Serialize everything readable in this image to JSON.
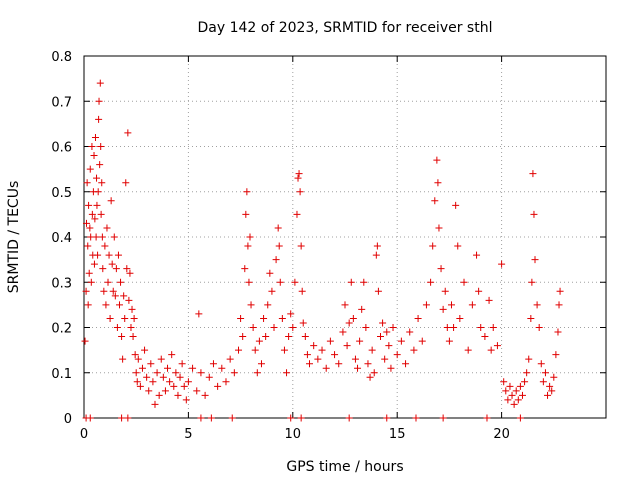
{
  "chart_data": {
    "type": "scatter",
    "title": "Day 142 of 2023, SRMTID for receiver sthl",
    "xlabel": "GPS time / hours",
    "ylabel": "SRMTID / TECUs",
    "xlim": [
      0,
      25
    ],
    "ylim": [
      0,
      0.8
    ],
    "x_ticks": [
      0,
      5,
      10,
      15,
      20
    ],
    "y_ticks": [
      0,
      0.1,
      0.2,
      0.3,
      0.4,
      0.5,
      0.6,
      0.7,
      0.8
    ],
    "x_tick_labels": [
      "0",
      "5",
      "10",
      "15",
      "20"
    ],
    "y_tick_labels": [
      "0",
      "0.1",
      "0.2",
      "0.3",
      "0.4",
      "0.5",
      "0.6",
      "0.7",
      "0.8"
    ],
    "grid": true,
    "marker": "+",
    "marker_color": "#e00000",
    "series": [
      {
        "name": "SRMTID",
        "points": [
          [
            0.05,
            0.17
          ],
          [
            0.1,
            0.28
          ],
          [
            0.12,
            0.43
          ],
          [
            0.15,
            0.52
          ],
          [
            0.18,
            0.38
          ],
          [
            0.2,
            0.25
          ],
          [
            0.22,
            0.47
          ],
          [
            0.25,
            0.32
          ],
          [
            0.28,
            0.42
          ],
          [
            0.3,
            0.55
          ],
          [
            0.32,
            0.4
          ],
          [
            0.35,
            0.3
          ],
          [
            0.38,
            0.6
          ],
          [
            0.4,
            0.45
          ],
          [
            0.42,
            0.36
          ],
          [
            0.45,
            0.5
          ],
          [
            0.48,
            0.58
          ],
          [
            0.5,
            0.34
          ],
          [
            0.52,
            0.44
          ],
          [
            0.55,
            0.62
          ],
          [
            0.58,
            0.4
          ],
          [
            0.6,
            0.53
          ],
          [
            0.62,
            0.47
          ],
          [
            0.65,
            0.36
          ],
          [
            0.68,
            0.5
          ],
          [
            0.7,
            0.66
          ],
          [
            0.72,
            0.7
          ],
          [
            0.75,
            0.56
          ],
          [
            0.78,
            0.74
          ],
          [
            0.8,
            0.6
          ],
          [
            0.82,
            0.45
          ],
          [
            0.85,
            0.52
          ],
          [
            0.88,
            0.4
          ],
          [
            0.9,
            0.33
          ],
          [
            0.95,
            0.28
          ],
          [
            1.0,
            0.38
          ],
          [
            1.05,
            0.25
          ],
          [
            1.1,
            0.42
          ],
          [
            1.15,
            0.3
          ],
          [
            1.2,
            0.36
          ],
          [
            1.25,
            0.22
          ],
          [
            1.3,
            0.48
          ],
          [
            1.35,
            0.34
          ],
          [
            1.4,
            0.28
          ],
          [
            1.45,
            0.4
          ],
          [
            1.5,
            0.27
          ],
          [
            1.55,
            0.33
          ],
          [
            1.6,
            0.2
          ],
          [
            1.65,
            0.36
          ],
          [
            1.7,
            0.25
          ],
          [
            1.75,
            0.3
          ],
          [
            1.8,
            0.18
          ],
          [
            1.85,
            0.13
          ],
          [
            1.9,
            0.27
          ],
          [
            1.95,
            0.22
          ],
          [
            2.0,
            0.52
          ],
          [
            2.05,
            0.33
          ],
          [
            2.1,
            0.63
          ],
          [
            2.15,
            0.26
          ],
          [
            2.2,
            0.32
          ],
          [
            2.25,
            0.2
          ],
          [
            2.3,
            0.24
          ],
          [
            2.35,
            0.18
          ],
          [
            2.4,
            0.22
          ],
          [
            2.45,
            0.14
          ],
          [
            2.5,
            0.1
          ],
          [
            2.55,
            0.08
          ],
          [
            2.6,
            0.13
          ],
          [
            2.7,
            0.07
          ],
          [
            2.8,
            0.11
          ],
          [
            2.9,
            0.15
          ],
          [
            3.0,
            0.09
          ],
          [
            3.1,
            0.06
          ],
          [
            3.2,
            0.12
          ],
          [
            3.3,
            0.08
          ],
          [
            3.4,
            0.03
          ],
          [
            3.5,
            0.1
          ],
          [
            3.6,
            0.05
          ],
          [
            3.7,
            0.13
          ],
          [
            3.8,
            0.09
          ],
          [
            3.9,
            0.06
          ],
          [
            4.0,
            0.11
          ],
          [
            4.1,
            0.08
          ],
          [
            4.2,
            0.14
          ],
          [
            4.3,
            0.07
          ],
          [
            4.4,
            0.1
          ],
          [
            4.5,
            0.05
          ],
          [
            4.6,
            0.09
          ],
          [
            4.7,
            0.12
          ],
          [
            4.8,
            0.07
          ],
          [
            4.9,
            0.04
          ],
          [
            5.0,
            0.08
          ],
          [
            5.2,
            0.11
          ],
          [
            5.4,
            0.06
          ],
          [
            5.5,
            0.23
          ],
          [
            5.6,
            0.1
          ],
          [
            5.8,
            0.05
          ],
          [
            6.0,
            0.09
          ],
          [
            6.2,
            0.12
          ],
          [
            6.4,
            0.07
          ],
          [
            6.6,
            0.11
          ],
          [
            6.8,
            0.08
          ],
          [
            7.0,
            0.13
          ],
          [
            7.2,
            0.1
          ],
          [
            7.4,
            0.15
          ],
          [
            7.5,
            0.22
          ],
          [
            7.6,
            0.18
          ],
          [
            7.7,
            0.33
          ],
          [
            7.75,
            0.45
          ],
          [
            7.8,
            0.5
          ],
          [
            7.85,
            0.38
          ],
          [
            7.9,
            0.3
          ],
          [
            7.95,
            0.4
          ],
          [
            8.0,
            0.25
          ],
          [
            8.1,
            0.2
          ],
          [
            8.2,
            0.15
          ],
          [
            8.3,
            0.1
          ],
          [
            8.4,
            0.17
          ],
          [
            8.5,
            0.12
          ],
          [
            8.6,
            0.22
          ],
          [
            8.7,
            0.18
          ],
          [
            8.8,
            0.25
          ],
          [
            8.9,
            0.32
          ],
          [
            9.0,
            0.28
          ],
          [
            9.1,
            0.2
          ],
          [
            9.2,
            0.35
          ],
          [
            9.3,
            0.42
          ],
          [
            9.35,
            0.38
          ],
          [
            9.4,
            0.3
          ],
          [
            9.5,
            0.22
          ],
          [
            9.6,
            0.15
          ],
          [
            9.7,
            0.1
          ],
          [
            9.8,
            0.18
          ],
          [
            9.9,
            0.23
          ],
          [
            10.0,
            0.2
          ],
          [
            10.1,
            0.3
          ],
          [
            10.2,
            0.45
          ],
          [
            10.25,
            0.53
          ],
          [
            10.3,
            0.54
          ],
          [
            10.35,
            0.5
          ],
          [
            10.4,
            0.38
          ],
          [
            10.45,
            0.28
          ],
          [
            10.5,
            0.21
          ],
          [
            10.6,
            0.18
          ],
          [
            10.7,
            0.14
          ],
          [
            10.8,
            0.12
          ],
          [
            11.0,
            0.16
          ],
          [
            11.2,
            0.13
          ],
          [
            11.4,
            0.15
          ],
          [
            11.6,
            0.11
          ],
          [
            11.8,
            0.17
          ],
          [
            12.0,
            0.14
          ],
          [
            12.2,
            0.12
          ],
          [
            12.4,
            0.19
          ],
          [
            12.5,
            0.25
          ],
          [
            12.6,
            0.16
          ],
          [
            12.7,
            0.21
          ],
          [
            12.8,
            0.3
          ],
          [
            12.9,
            0.22
          ],
          [
            13.0,
            0.13
          ],
          [
            13.1,
            0.11
          ],
          [
            13.2,
            0.17
          ],
          [
            13.3,
            0.24
          ],
          [
            13.4,
            0.3
          ],
          [
            13.5,
            0.2
          ],
          [
            13.6,
            0.12
          ],
          [
            13.7,
            0.09
          ],
          [
            13.8,
            0.15
          ],
          [
            13.9,
            0.1
          ],
          [
            14.0,
            0.36
          ],
          [
            14.05,
            0.38
          ],
          [
            14.1,
            0.28
          ],
          [
            14.2,
            0.18
          ],
          [
            14.3,
            0.21
          ],
          [
            14.4,
            0.13
          ],
          [
            14.5,
            0.19
          ],
          [
            14.6,
            0.16
          ],
          [
            14.7,
            0.11
          ],
          [
            14.8,
            0.2
          ],
          [
            15.0,
            0.14
          ],
          [
            15.2,
            0.17
          ],
          [
            15.4,
            0.12
          ],
          [
            15.6,
            0.19
          ],
          [
            15.8,
            0.15
          ],
          [
            16.0,
            0.22
          ],
          [
            16.2,
            0.17
          ],
          [
            16.4,
            0.25
          ],
          [
            16.6,
            0.3
          ],
          [
            16.7,
            0.38
          ],
          [
            16.8,
            0.48
          ],
          [
            16.9,
            0.57
          ],
          [
            16.95,
            0.52
          ],
          [
            17.0,
            0.42
          ],
          [
            17.1,
            0.33
          ],
          [
            17.2,
            0.24
          ],
          [
            17.3,
            0.28
          ],
          [
            17.4,
            0.2
          ],
          [
            17.5,
            0.17
          ],
          [
            17.6,
            0.25
          ],
          [
            17.7,
            0.2
          ],
          [
            17.8,
            0.47
          ],
          [
            17.9,
            0.38
          ],
          [
            18.0,
            0.22
          ],
          [
            18.2,
            0.3
          ],
          [
            18.4,
            0.15
          ],
          [
            18.6,
            0.25
          ],
          [
            18.8,
            0.36
          ],
          [
            18.9,
            0.28
          ],
          [
            19.0,
            0.2
          ],
          [
            19.2,
            0.18
          ],
          [
            19.4,
            0.26
          ],
          [
            19.5,
            0.15
          ],
          [
            19.6,
            0.2
          ],
          [
            19.8,
            0.16
          ],
          [
            20.0,
            0.34
          ],
          [
            20.1,
            0.08
          ],
          [
            20.2,
            0.06
          ],
          [
            20.3,
            0.04
          ],
          [
            20.4,
            0.07
          ],
          [
            20.5,
            0.05
          ],
          [
            20.6,
            0.03
          ],
          [
            20.7,
            0.06
          ],
          [
            20.8,
            0.04
          ],
          [
            20.9,
            0.07
          ],
          [
            21.0,
            0.05
          ],
          [
            21.1,
            0.08
          ],
          [
            21.2,
            0.1
          ],
          [
            21.3,
            0.13
          ],
          [
            21.4,
            0.22
          ],
          [
            21.45,
            0.3
          ],
          [
            21.5,
            0.54
          ],
          [
            21.55,
            0.45
          ],
          [
            21.6,
            0.35
          ],
          [
            21.7,
            0.25
          ],
          [
            21.8,
            0.2
          ],
          [
            21.9,
            0.12
          ],
          [
            22.0,
            0.08
          ],
          [
            22.1,
            0.1
          ],
          [
            22.2,
            0.05
          ],
          [
            22.3,
            0.07
          ],
          [
            22.4,
            0.06
          ],
          [
            22.5,
            0.09
          ],
          [
            22.6,
            0.14
          ],
          [
            22.7,
            0.19
          ],
          [
            22.75,
            0.25
          ],
          [
            22.8,
            0.28
          ],
          [
            0.1,
            0.0
          ],
          [
            0.3,
            0.0
          ],
          [
            1.8,
            0.0
          ],
          [
            2.1,
            0.0
          ],
          [
            5.6,
            0.0
          ],
          [
            6.1,
            0.0
          ],
          [
            7.1,
            0.0
          ],
          [
            9.9,
            0.0
          ],
          [
            10.4,
            0.0
          ],
          [
            12.7,
            0.0
          ],
          [
            14.5,
            0.0
          ],
          [
            15.9,
            0.0
          ],
          [
            17.2,
            0.0
          ],
          [
            19.3,
            0.0
          ],
          [
            20.9,
            0.0
          ]
        ]
      }
    ]
  }
}
